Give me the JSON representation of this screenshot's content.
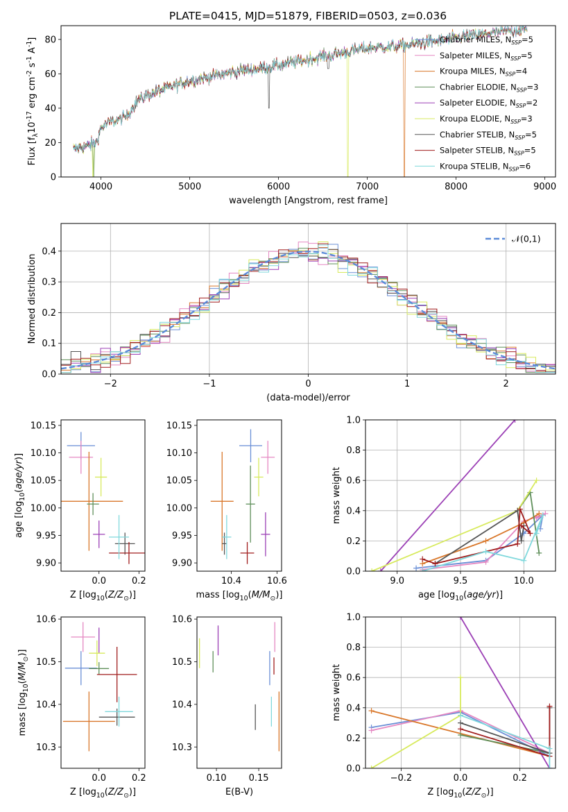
{
  "title": "PLATE=0415, MJD=51879, FIBERID=0503, z=0.036",
  "models": [
    {
      "name": "Chabrier MILES, N$_{SSP}$=5",
      "label_pre": "Chabrier MILES, N",
      "label_post": "=5",
      "color": "#6a8fd6"
    },
    {
      "name": "Salpeter MILES, N$_{SSP}$=5",
      "label_pre": "Salpeter MILES, N",
      "label_post": "=5",
      "color": "#e587c2"
    },
    {
      "name": "Kroupa MILES, N$_{SSP}$=4",
      "label_pre": "Kroupa MILES, N",
      "label_post": "=4",
      "color": "#d9772a"
    },
    {
      "name": "Chabrier ELODIE, N$_{SSP}$=3",
      "label_pre": "Chabrier ELODIE, N",
      "label_post": "=3",
      "color": "#5f8f5a"
    },
    {
      "name": "Salpeter ELODIE, N$_{SSP}$=2",
      "label_pre": "Salpeter ELODIE, N",
      "label_post": "=2",
      "color": "#9b3fb5"
    },
    {
      "name": "Kroupa ELODIE, N$_{SSP}$=3",
      "label_pre": "Kroupa ELODIE, N",
      "label_post": "=3",
      "color": "#d7ea5c"
    },
    {
      "name": "Chabrier STELIB, N$_{SSP}$=5",
      "label_pre": "Chabrier STELIB, N",
      "label_post": "=5",
      "color": "#555555"
    },
    {
      "name": "Salpeter STELIB, N$_{SSP}$=5",
      "label_pre": "Salpeter STELIB, N",
      "label_post": "=5",
      "color": "#a01c1c"
    },
    {
      "name": "Kroupa STELIB, N$_{SSP}$=6",
      "label_pre": "Kroupa STELIB, N",
      "label_post": "=6",
      "color": "#7fd8dc"
    }
  ],
  "chart_data": [
    {
      "id": "spectrum",
      "type": "line",
      "xlabel": "wavelength [Angstrom, rest frame]",
      "ylabel": "Flux [f$_\\lambda$10$^{-17}$ erg cm$^{-2}$ s$^{-1}$ A$^{-1}$]",
      "xlim": [
        3550,
        9120
      ],
      "ylim": [
        0,
        88
      ],
      "xticks": [
        4000,
        5000,
        6000,
        7000,
        8000,
        9000
      ],
      "yticks": [
        0,
        20,
        40,
        60,
        80
      ],
      "grid": false,
      "legend": "upper right",
      "continuum": {
        "x": [
          3690,
          3750,
          3850,
          3950,
          4000,
          4100,
          4200,
          4300,
          4400,
          4500,
          4700,
          5000,
          5300,
          5600,
          6000,
          6300,
          6600,
          6800,
          7000,
          7300,
          7500,
          7800,
          8000,
          8300,
          8600,
          8800
        ],
        "y": [
          16,
          17,
          18,
          20,
          29,
          32,
          33,
          36,
          44,
          47,
          51,
          56,
          59,
          62,
          65,
          68,
          71,
          73,
          75,
          76,
          77,
          79,
          81,
          83,
          85,
          86
        ]
      },
      "dips": [
        {
          "series": 5,
          "x": 3910,
          "y": 0
        },
        {
          "series": 3,
          "x": 3920,
          "y": 0
        },
        {
          "series": 5,
          "x": 6780,
          "y": 0
        },
        {
          "series": 2,
          "x": 7420,
          "y": 0
        },
        {
          "series": 6,
          "x": 5890,
          "y": 40
        },
        {
          "series": 6,
          "x": 6560,
          "y": 63
        }
      ]
    },
    {
      "id": "residuals",
      "type": "histogram",
      "xlabel": "(data-model)/error",
      "ylabel": "Normed distribution",
      "xlim": [
        -2.5,
        2.5
      ],
      "ylim": [
        0,
        0.49
      ],
      "xticks": [
        -2,
        -1,
        0,
        1,
        2
      ],
      "yticks": [
        0.0,
        0.1,
        0.2,
        0.3,
        0.4
      ],
      "grid": true,
      "bin_width": 0.1,
      "reference": {
        "name": "$\\mathcal{N}(0,1)$",
        "color": "#5b8ad8"
      },
      "legend": "upper right"
    },
    {
      "id": "age_vs_Z",
      "type": "scatter",
      "xlabel": "Z [log$_{10}$($Z/Z_\\odot$)]",
      "ylabel": "age  [log$_{10}$($age/yr$)]",
      "xlim": [
        -0.19,
        0.23
      ],
      "ylim": [
        9.885,
        10.16
      ],
      "xticks": [
        0.0,
        0.2
      ],
      "yticks": [
        9.9,
        9.95,
        10.0,
        10.05,
        10.1,
        10.15
      ],
      "points": [
        {
          "x": -0.09,
          "y": 10.113,
          "xerr": 0.07,
          "yerr": 0.025
        },
        {
          "x": -0.09,
          "y": 10.092,
          "xerr": 0.06,
          "yerr": 0.03
        },
        {
          "x": -0.05,
          "y": 10.012,
          "xerr": 0.17,
          "yerr": 0.09
        },
        {
          "x": -0.03,
          "y": 10.007,
          "xerr": 0.03,
          "yerr": 0.02
        },
        {
          "x": 0.0,
          "y": 9.952,
          "xerr": 0.03,
          "yerr": 0.025
        },
        {
          "x": 0.01,
          "y": 10.056,
          "xerr": 0.03,
          "yerr": 0.035
        },
        {
          "x": 0.13,
          "y": 9.935,
          "xerr": 0.05,
          "yerr": 0.02
        },
        {
          "x": 0.15,
          "y": 9.918,
          "xerr": 0.1,
          "yerr": 0.02
        },
        {
          "x": 0.1,
          "y": 9.947,
          "xerr": 0.05,
          "yerr": 0.04
        }
      ]
    },
    {
      "id": "age_vs_mass",
      "type": "scatter",
      "xlabel": "mass [log$_{10}$($M/M_\\odot$)]",
      "ylabel": "",
      "xlim": [
        10.25,
        10.62
      ],
      "ylim": [
        9.885,
        10.16
      ],
      "xticks": [
        10.4,
        10.6
      ],
      "yticks": [
        9.9,
        9.95,
        10.0,
        10.05,
        10.1,
        10.15
      ],
      "points": [
        {
          "x": 10.485,
          "y": 10.113,
          "xerr": 0.05,
          "yerr": 0.03
        },
        {
          "x": 10.56,
          "y": 10.092,
          "xerr": 0.03,
          "yerr": 0.03
        },
        {
          "x": 10.36,
          "y": 10.012,
          "xerr": 0.05,
          "yerr": 0.09
        },
        {
          "x": 10.484,
          "y": 10.007,
          "xerr": 0.02,
          "yerr": 0.07
        },
        {
          "x": 10.55,
          "y": 9.952,
          "xerr": 0.02,
          "yerr": 0.04
        },
        {
          "x": 10.52,
          "y": 10.056,
          "xerr": 0.02,
          "yerr": 0.035
        },
        {
          "x": 10.37,
          "y": 9.935,
          "xerr": 0.01,
          "yerr": 0.02
        },
        {
          "x": 10.47,
          "y": 9.918,
          "xerr": 0.03,
          "yerr": 0.02
        },
        {
          "x": 10.38,
          "y": 9.947,
          "xerr": 0.02,
          "yerr": 0.04
        }
      ]
    },
    {
      "id": "weight_vs_age",
      "type": "line",
      "xlabel": "age  [log$_{10}$($age/yr$)]",
      "ylabel": "mass weight",
      "xlim": [
        8.75,
        10.25
      ],
      "ylim": [
        0.0,
        1.0
      ],
      "xticks": [
        9.0,
        9.5,
        10.0
      ],
      "yticks": [
        0.0,
        0.2,
        0.4,
        0.6,
        0.8,
        1.0
      ],
      "grid": true,
      "series": [
        {
          "x": [
            9.15,
            9.7,
            10.0,
            10.15,
            10.13
          ],
          "y": [
            0.02,
            0.07,
            0.25,
            0.37,
            0.28
          ]
        },
        {
          "x": [
            9.2,
            9.7,
            10.0,
            10.17,
            10.1
          ],
          "y": [
            0.01,
            0.06,
            0.33,
            0.38,
            0.35
          ]
        },
        {
          "x": [
            9.2,
            9.7,
            10.0,
            10.12
          ],
          "y": [
            0.05,
            0.2,
            0.32,
            0.38
          ]
        },
        {
          "x": [
            9.95,
            10.05,
            10.12
          ],
          "y": [
            0.4,
            0.52,
            0.12
          ]
        },
        {
          "x": [
            8.87,
            9.93
          ],
          "y": [
            0.0,
            1.0
          ]
        },
        {
          "x": [
            8.8,
            9.95,
            10.1
          ],
          "y": [
            0.0,
            0.4,
            0.6
          ]
        },
        {
          "x": [
            9.3,
            9.95,
            9.98,
            10.0
          ],
          "y": [
            0.05,
            0.4,
            0.2,
            0.3
          ]
        },
        {
          "x": [
            9.2,
            9.3,
            9.95,
            9.97,
            10.05,
            9.98
          ],
          "y": [
            0.08,
            0.05,
            0.18,
            0.41,
            0.25,
            0.3
          ]
        },
        {
          "x": [
            9.2,
            9.7,
            10.0,
            10.15,
            10.1
          ],
          "y": [
            0.0,
            0.13,
            0.07,
            0.37,
            0.25
          ]
        }
      ]
    },
    {
      "id": "mass_vs_Z",
      "type": "scatter",
      "xlabel": "Z [log$_{10}$($Z/Z_\\odot$)]",
      "ylabel": "mass [log$_{10}$($M/M_\\odot$)]",
      "xlim": [
        -0.19,
        0.23
      ],
      "ylim": [
        10.25,
        10.605
      ],
      "xticks": [
        0.0,
        0.2
      ],
      "yticks": [
        10.3,
        10.4,
        10.5,
        10.6
      ],
      "points": [
        {
          "x": -0.09,
          "y": 10.485,
          "xerr": 0.08,
          "yerr": 0.04
        },
        {
          "x": -0.08,
          "y": 10.558,
          "xerr": 0.06,
          "yerr": 0.035
        },
        {
          "x": -0.05,
          "y": 10.36,
          "xerr": 0.13,
          "yerr": 0.07
        },
        {
          "x": 0.0,
          "y": 10.484,
          "xerr": 0.05,
          "yerr": 0.015
        },
        {
          "x": 0.0,
          "y": 10.55,
          "xerr": 0.0,
          "yerr": 0.03
        },
        {
          "x": -0.01,
          "y": 10.52,
          "xerr": 0.04,
          "yerr": 0.03
        },
        {
          "x": 0.09,
          "y": 10.37,
          "xerr": 0.09,
          "yerr": 0.02
        },
        {
          "x": 0.09,
          "y": 10.47,
          "xerr": 0.1,
          "yerr": 0.065
        },
        {
          "x": 0.1,
          "y": 10.383,
          "xerr": 0.07,
          "yerr": 0.035
        }
      ]
    },
    {
      "id": "mass_vs_ebv",
      "type": "scatter",
      "xlabel": "E(B-V)",
      "ylabel": "",
      "xlim": [
        0.077,
        0.177
      ],
      "ylim": [
        10.25,
        10.605
      ],
      "xticks": [
        0.1,
        0.15
      ],
      "yticks": [
        10.3,
        10.4,
        10.5,
        10.6
      ],
      "points": [
        {
          "x": 0.163,
          "y": 10.485,
          "xerr": 0,
          "yerr": 0.04
        },
        {
          "x": 0.169,
          "y": 10.558,
          "xerr": 0,
          "yerr": 0.035
        },
        {
          "x": 0.174,
          "y": 10.36,
          "xerr": 0,
          "yerr": 0.07
        },
        {
          "x": 0.096,
          "y": 10.5,
          "xerr": 0,
          "yerr": 0.025
        },
        {
          "x": 0.102,
          "y": 10.55,
          "xerr": 0,
          "yerr": 0.035
        },
        {
          "x": 0.08,
          "y": 10.52,
          "xerr": 0,
          "yerr": 0.035
        },
        {
          "x": 0.146,
          "y": 10.37,
          "xerr": 0,
          "yerr": 0.03
        },
        {
          "x": 0.168,
          "y": 10.49,
          "xerr": 0,
          "yerr": 0.02
        },
        {
          "x": 0.165,
          "y": 10.383,
          "xerr": 0,
          "yerr": 0.035
        }
      ]
    },
    {
      "id": "weight_vs_Z",
      "type": "line",
      "xlabel": "Z [log$_{10}$($Z/Z_\\odot$)]",
      "ylabel": "mass weight",
      "xlim": [
        -0.32,
        0.32
      ],
      "ylim": [
        0.0,
        1.0
      ],
      "xticks": [
        -0.2,
        0.0,
        0.2
      ],
      "yticks": [
        0.0,
        0.2,
        0.4,
        0.6,
        0.8,
        1.0
      ],
      "grid": true,
      "series": [
        {
          "x": [
            -0.3,
            0.0,
            0.3
          ],
          "y": [
            0.27,
            0.37,
            0.08
          ]
        },
        {
          "x": [
            -0.3,
            0.0,
            0.3
          ],
          "y": [
            0.25,
            0.38,
            0.1
          ]
        },
        {
          "x": [
            -0.3,
            0.3
          ],
          "y": [
            0.38,
            0.08
          ]
        },
        {
          "x": [
            0.0,
            0.3
          ],
          "y": [
            0.22,
            0.1
          ]
        },
        {
          "x": [
            0.0,
            0.3
          ],
          "y": [
            1.0,
            0.0
          ]
        },
        {
          "x": [
            -0.3,
            0.0,
            0.0
          ],
          "y": [
            0.0,
            0.35,
            0.6
          ]
        },
        {
          "x": [
            0.0,
            0.3,
            0.3
          ],
          "y": [
            0.3,
            0.1,
            0.4
          ]
        },
        {
          "x": [
            0.0,
            0.3,
            0.3
          ],
          "y": [
            0.26,
            0.08,
            0.41
          ]
        },
        {
          "x": [
            0.0,
            0.3,
            0.3
          ],
          "y": [
            0.35,
            0.13,
            0.0
          ]
        }
      ]
    }
  ]
}
